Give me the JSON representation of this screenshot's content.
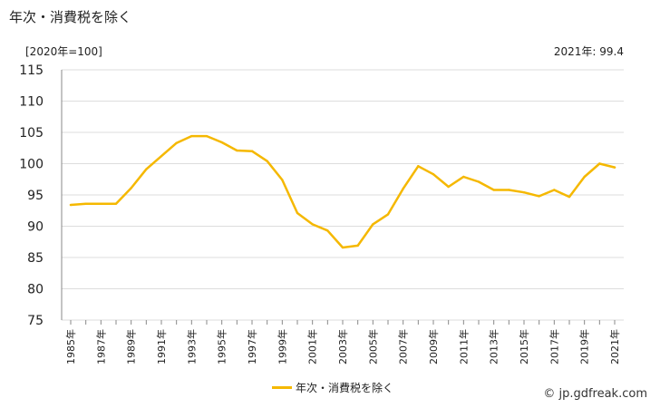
{
  "title": "年次・消費税を除く",
  "unit_label": "[2020年=100]",
  "latest_label": "2021年: 99.4",
  "source": "© jp.gdfreak.com",
  "colors": {
    "series": "#f5b800",
    "grid": "#dddddd",
    "axis": "#888888"
  },
  "chart_data": {
    "type": "line",
    "title": "年次・消費税を除く",
    "ylabel": "[2020年=100]",
    "ylim": [
      75,
      115
    ],
    "yticks": [
      75,
      80,
      85,
      90,
      95,
      100,
      105,
      110,
      115
    ],
    "grid": true,
    "legend_position": "bottom-center",
    "x": [
      "1985年",
      "1986年",
      "1987年",
      "1988年",
      "1989年",
      "1990年",
      "1991年",
      "1992年",
      "1993年",
      "1994年",
      "1995年",
      "1996年",
      "1997年",
      "1998年",
      "1999年",
      "2000年",
      "2001年",
      "2002年",
      "2003年",
      "2004年",
      "2005年",
      "2006年",
      "2007年",
      "2008年",
      "2009年",
      "2010年",
      "2011年",
      "2012年",
      "2013年",
      "2014年",
      "2015年",
      "2016年",
      "2017年",
      "2018年",
      "2019年",
      "2020年",
      "2021年"
    ],
    "xtick_labels": [
      "1985年",
      "1987年",
      "1989年",
      "1991年",
      "1993年",
      "1995年",
      "1997年",
      "1999年",
      "2001年",
      "2003年",
      "2005年",
      "2007年",
      "2009年",
      "2011年",
      "2013年",
      "2015年",
      "2017年",
      "2019年",
      "2021年"
    ],
    "series": [
      {
        "name": "年次・消費税を除く",
        "values": [
          93.4,
          93.6,
          93.6,
          93.6,
          96.1,
          99.1,
          101.2,
          103.3,
          104.4,
          104.4,
          103.4,
          102.1,
          102.0,
          100.4,
          97.4,
          92.1,
          90.3,
          89.3,
          86.6,
          86.9,
          90.3,
          91.9,
          96.0,
          99.6,
          98.3,
          96.3,
          97.9,
          97.1,
          95.8,
          95.8,
          95.4,
          94.8,
          95.8,
          94.7,
          97.9,
          100.0,
          99.4
        ]
      }
    ]
  }
}
